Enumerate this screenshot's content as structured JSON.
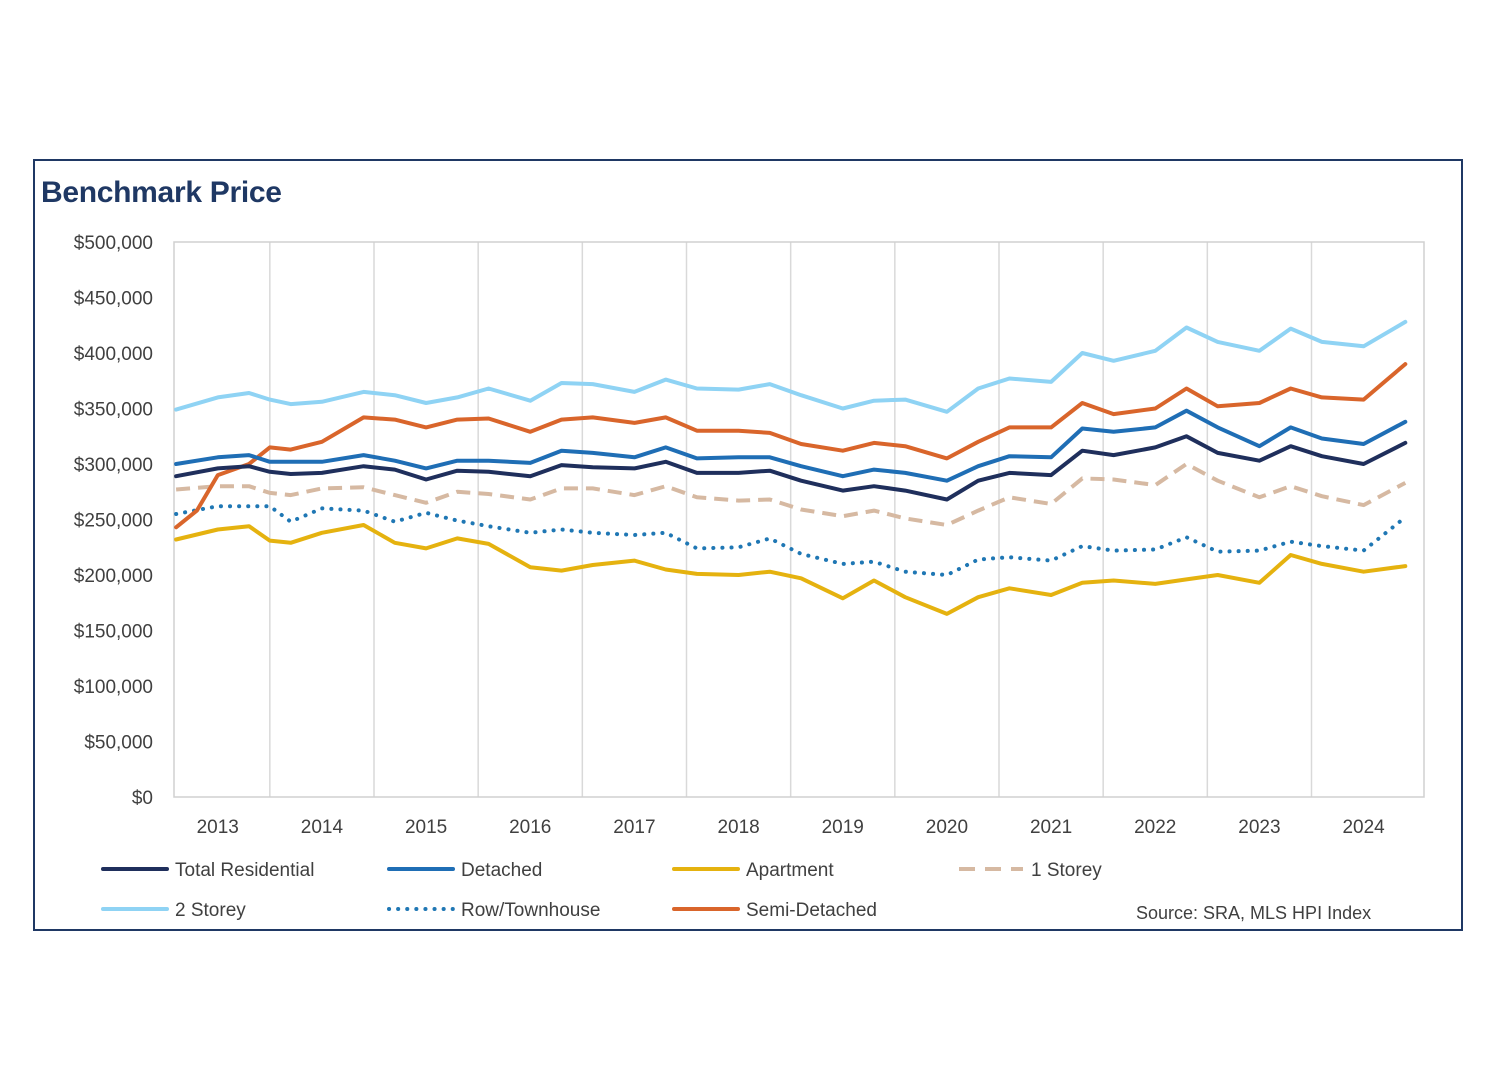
{
  "chart_data": {
    "type": "line",
    "title": "Benchmark Price",
    "source": "Source: SRA, MLS HPI Index",
    "xlabel": "",
    "ylabel": "",
    "ylim": [
      0,
      500000
    ],
    "xlim": [
      2012.58,
      2024.58
    ],
    "y_ticks": [
      0,
      50000,
      100000,
      150000,
      200000,
      250000,
      300000,
      350000,
      400000,
      450000,
      500000
    ],
    "y_tick_labels": [
      "$0",
      "$50,000",
      "$100,000",
      "$150,000",
      "$200,000",
      "$250,000",
      "$300,000",
      "$350,000",
      "$400,000",
      "$450,000",
      "$500,000"
    ],
    "x_ticks": [
      2013,
      2014,
      2015,
      2016,
      2017,
      2018,
      2019,
      2020,
      2021,
      2022,
      2023,
      2024
    ],
    "x_tick_labels": [
      "2013",
      "2014",
      "2015",
      "2016",
      "2017",
      "2018",
      "2019",
      "2020",
      "2021",
      "2022",
      "2023",
      "2024"
    ],
    "grid": "vertical",
    "legend_position": "bottom",
    "series": [
      {
        "name": "Total Residential",
        "color": "#1f2f5c",
        "style": "solid",
        "x": [
          2012.6,
          2013.0,
          2013.3,
          2013.5,
          2013.7,
          2014.0,
          2014.4,
          2014.7,
          2015.0,
          2015.3,
          2015.6,
          2016.0,
          2016.3,
          2016.6,
          2017.0,
          2017.3,
          2017.6,
          2018.0,
          2018.3,
          2018.6,
          2019.0,
          2019.3,
          2019.6,
          2020.0,
          2020.3,
          2020.6,
          2021.0,
          2021.3,
          2021.6,
          2022.0,
          2022.3,
          2022.6,
          2023.0,
          2023.3,
          2023.6,
          2024.0,
          2024.4
        ],
        "values": [
          289000,
          296000,
          298000,
          293000,
          291000,
          292000,
          298000,
          295000,
          286000,
          294000,
          293000,
          289000,
          299000,
          297000,
          296000,
          302000,
          292000,
          292000,
          294000,
          285000,
          276000,
          280000,
          276000,
          268000,
          285000,
          292000,
          290000,
          312000,
          308000,
          315000,
          325000,
          310000,
          303000,
          316000,
          307000,
          300000,
          319000
        ]
      },
      {
        "name": "Detached",
        "color": "#1f6eb5",
        "style": "solid",
        "x": [
          2012.6,
          2013.0,
          2013.3,
          2013.5,
          2013.7,
          2014.0,
          2014.4,
          2014.7,
          2015.0,
          2015.3,
          2015.6,
          2016.0,
          2016.3,
          2016.6,
          2017.0,
          2017.3,
          2017.6,
          2018.0,
          2018.3,
          2018.6,
          2019.0,
          2019.3,
          2019.6,
          2020.0,
          2020.3,
          2020.6,
          2021.0,
          2021.3,
          2021.6,
          2022.0,
          2022.3,
          2022.6,
          2023.0,
          2023.3,
          2023.6,
          2024.0,
          2024.4
        ],
        "values": [
          300000,
          306000,
          308000,
          302000,
          302000,
          302000,
          308000,
          303000,
          296000,
          303000,
          303000,
          301000,
          312000,
          310000,
          306000,
          315000,
          305000,
          306000,
          306000,
          298000,
          289000,
          295000,
          292000,
          285000,
          298000,
          307000,
          306000,
          332000,
          329000,
          333000,
          348000,
          333000,
          316000,
          333000,
          323000,
          318000,
          338000
        ]
      },
      {
        "name": "Apartment",
        "color": "#e5b20f",
        "style": "solid",
        "x": [
          2012.6,
          2013.0,
          2013.3,
          2013.5,
          2013.7,
          2014.0,
          2014.4,
          2014.7,
          2015.0,
          2015.3,
          2015.6,
          2016.0,
          2016.3,
          2016.6,
          2017.0,
          2017.3,
          2017.6,
          2018.0,
          2018.3,
          2018.6,
          2019.0,
          2019.3,
          2019.6,
          2020.0,
          2020.3,
          2020.6,
          2021.0,
          2021.3,
          2021.6,
          2022.0,
          2022.3,
          2022.6,
          2023.0,
          2023.3,
          2023.6,
          2024.0,
          2024.4
        ],
        "values": [
          232000,
          241000,
          244000,
          231000,
          229000,
          238000,
          245000,
          229000,
          224000,
          233000,
          228000,
          207000,
          204000,
          209000,
          213000,
          205000,
          201000,
          200000,
          203000,
          197000,
          179000,
          195000,
          180000,
          165000,
          180000,
          188000,
          182000,
          193000,
          195000,
          192000,
          196000,
          200000,
          193000,
          218000,
          210000,
          203000,
          208000
        ]
      },
      {
        "name": "1 Storey",
        "color": "#d6b9a2",
        "style": "dash",
        "x": [
          2012.6,
          2013.0,
          2013.3,
          2013.5,
          2013.7,
          2014.0,
          2014.4,
          2014.7,
          2015.0,
          2015.3,
          2015.6,
          2016.0,
          2016.3,
          2016.6,
          2017.0,
          2017.3,
          2017.6,
          2018.0,
          2018.3,
          2018.6,
          2019.0,
          2019.3,
          2019.6,
          2020.0,
          2020.3,
          2020.6,
          2021.0,
          2021.3,
          2021.6,
          2022.0,
          2022.3,
          2022.6,
          2023.0,
          2023.3,
          2023.6,
          2024.0,
          2024.4
        ],
        "values": [
          277000,
          280000,
          280000,
          274000,
          272000,
          278000,
          279000,
          272000,
          265000,
          275000,
          273000,
          268000,
          278000,
          278000,
          272000,
          280000,
          270000,
          267000,
          268000,
          259000,
          253000,
          258000,
          251000,
          245000,
          258000,
          270000,
          264000,
          287000,
          286000,
          281000,
          300000,
          285000,
          270000,
          280000,
          271000,
          263000,
          283000
        ]
      },
      {
        "name": "2 Storey",
        "color": "#8fd3f4",
        "style": "solid",
        "x": [
          2012.6,
          2013.0,
          2013.3,
          2013.5,
          2013.7,
          2014.0,
          2014.4,
          2014.7,
          2015.0,
          2015.3,
          2015.6,
          2016.0,
          2016.3,
          2016.6,
          2017.0,
          2017.3,
          2017.6,
          2018.0,
          2018.3,
          2018.6,
          2019.0,
          2019.3,
          2019.6,
          2020.0,
          2020.3,
          2020.6,
          2021.0,
          2021.3,
          2021.6,
          2022.0,
          2022.3,
          2022.6,
          2023.0,
          2023.3,
          2023.6,
          2024.0,
          2024.4
        ],
        "values": [
          349000,
          360000,
          364000,
          358000,
          354000,
          356000,
          365000,
          362000,
          355000,
          360000,
          368000,
          357000,
          373000,
          372000,
          365000,
          376000,
          368000,
          367000,
          372000,
          362000,
          350000,
          357000,
          358000,
          347000,
          368000,
          377000,
          374000,
          400000,
          393000,
          402000,
          423000,
          410000,
          402000,
          422000,
          410000,
          406000,
          428000
        ]
      },
      {
        "name": "Row/Townhouse",
        "color": "#1f77b4",
        "style": "dot",
        "x": [
          2012.6,
          2013.0,
          2013.3,
          2013.5,
          2013.7,
          2014.0,
          2014.4,
          2014.7,
          2015.0,
          2015.3,
          2015.6,
          2016.0,
          2016.3,
          2016.6,
          2017.0,
          2017.3,
          2017.6,
          2018.0,
          2018.3,
          2018.6,
          2019.0,
          2019.3,
          2019.6,
          2020.0,
          2020.3,
          2020.6,
          2021.0,
          2021.3,
          2021.6,
          2022.0,
          2022.3,
          2022.6,
          2023.0,
          2023.3,
          2023.6,
          2024.0,
          2024.4
        ],
        "values": [
          255000,
          262000,
          262000,
          262000,
          248000,
          260000,
          258000,
          248000,
          256000,
          249000,
          244000,
          238000,
          241000,
          238000,
          236000,
          238000,
          224000,
          225000,
          233000,
          219000,
          210000,
          212000,
          203000,
          200000,
          214000,
          216000,
          213000,
          226000,
          222000,
          223000,
          234000,
          221000,
          222000,
          230000,
          226000,
          222000,
          252000
        ]
      },
      {
        "name": "Semi-Detached",
        "color": "#d9652b",
        "style": "solid",
        "x": [
          2012.6,
          2012.8,
          2013.0,
          2013.3,
          2013.5,
          2013.7,
          2014.0,
          2014.4,
          2014.7,
          2015.0,
          2015.3,
          2015.6,
          2016.0,
          2016.3,
          2016.6,
          2017.0,
          2017.3,
          2017.6,
          2018.0,
          2018.3,
          2018.6,
          2019.0,
          2019.3,
          2019.6,
          2020.0,
          2020.3,
          2020.6,
          2021.0,
          2021.3,
          2021.6,
          2022.0,
          2022.3,
          2022.6,
          2023.0,
          2023.3,
          2023.6,
          2024.0,
          2024.4
        ],
        "values": [
          243000,
          258000,
          290000,
          300000,
          315000,
          313000,
          320000,
          342000,
          340000,
          333000,
          340000,
          341000,
          329000,
          340000,
          342000,
          337000,
          342000,
          330000,
          330000,
          328000,
          318000,
          312000,
          319000,
          316000,
          305000,
          320000,
          333000,
          333000,
          355000,
          345000,
          350000,
          368000,
          352000,
          355000,
          368000,
          360000,
          358000,
          390000
        ]
      }
    ]
  }
}
